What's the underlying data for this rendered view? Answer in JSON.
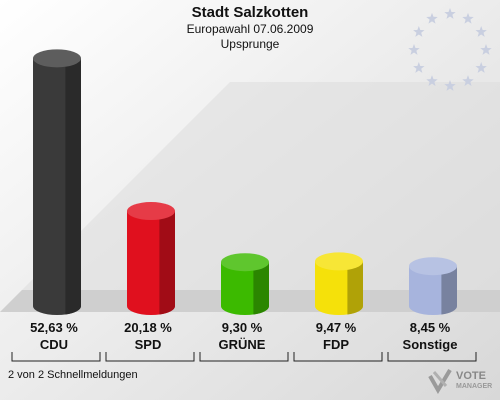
{
  "header": {
    "title": "Stadt Salzkotten",
    "subtitle": "Europawahl 07.06.2009",
    "subtitle2": "Upsprunge"
  },
  "footer": {
    "note": "2 von 2 Schnellmeldungen"
  },
  "logo": {
    "text": "VOTE",
    "sub": "MANAGER"
  },
  "chart_data": {
    "type": "bar",
    "categories": [
      "CDU",
      "SPD",
      "GRÜNE",
      "FDP",
      "Sonstige"
    ],
    "values": [
      52.63,
      20.18,
      9.3,
      9.47,
      8.45
    ],
    "value_labels": [
      "52,63 %",
      "20,18 %",
      "9,30 %",
      "9,47 %",
      "8,45 %"
    ],
    "colors": [
      "#3a3a3a",
      "#e0101e",
      "#3cba00",
      "#f5e10a",
      "#a7b4dd"
    ],
    "ylim": [
      0,
      55
    ]
  }
}
